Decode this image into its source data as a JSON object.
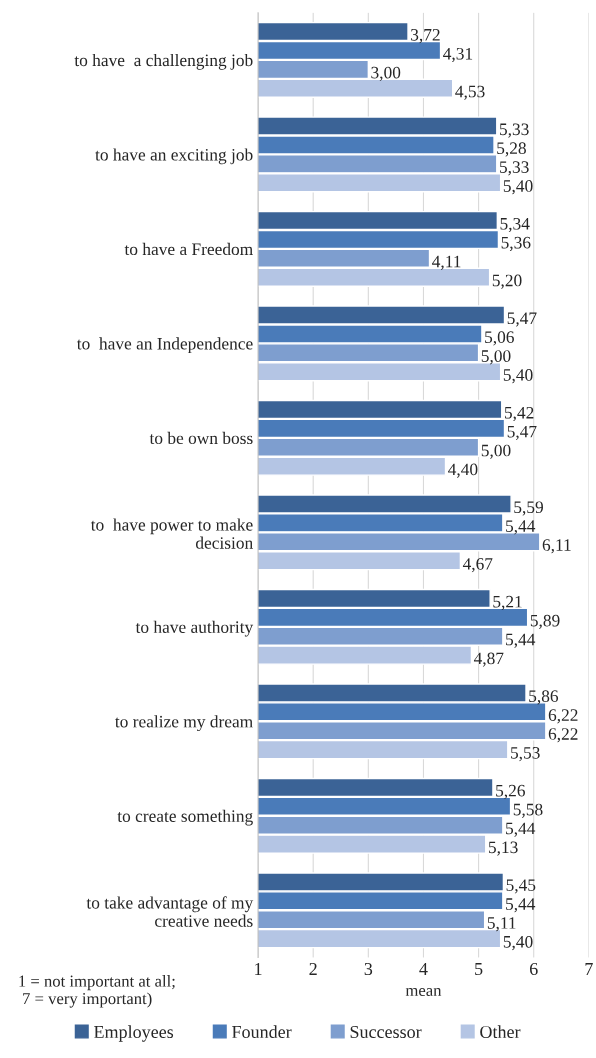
{
  "chart_data": {
    "type": "bar",
    "orientation": "horizontal",
    "xlabel": "mean",
    "categories": [
      "to have  a challenging job",
      "to have an exciting job",
      "to have a Freedom",
      "to  have an Independence",
      "to be own boss",
      "to  have power to make\ndecision",
      "to have authority",
      "to realize my dream",
      "to create something",
      "to take advantage of my\ncreative needs"
    ],
    "series": [
      {
        "name": "Employees",
        "color": "#3b6396",
        "values": [
          3.72,
          5.33,
          5.34,
          5.47,
          5.42,
          5.59,
          5.21,
          5.86,
          5.26,
          5.45
        ],
        "value_labels": [
          "3,72",
          "5,33",
          "5,34",
          "5,47",
          "5,42",
          "5,59",
          "5,21",
          "5,86",
          "5,26",
          "5,45"
        ]
      },
      {
        "name": "Founder",
        "color": "#4a7bb9",
        "values": [
          4.31,
          5.28,
          5.36,
          5.06,
          5.47,
          5.44,
          5.89,
          6.22,
          5.58,
          5.44
        ],
        "value_labels": [
          "4,31",
          "5,28",
          "5,36",
          "5,06",
          "5,47",
          "5,44",
          "5,89",
          "6,22",
          "5,58",
          "5,44"
        ]
      },
      {
        "name": "Successor",
        "color": "#7e9ecf",
        "values": [
          3.0,
          5.33,
          4.11,
          5.0,
          5.0,
          6.11,
          5.44,
          6.22,
          5.44,
          5.11
        ],
        "value_labels": [
          "3,00",
          "5,33",
          "4,11",
          "5,00",
          "5,00",
          "6,11",
          "5,44",
          "6,22",
          "5,44",
          "5,11"
        ]
      },
      {
        "name": "Other",
        "color": "#b4c5e4",
        "values": [
          4.53,
          5.4,
          5.2,
          5.4,
          4.4,
          4.67,
          4.87,
          5.53,
          5.13,
          5.4
        ],
        "value_labels": [
          "4,53",
          "5,40",
          "5,20",
          "5,40",
          "4,40",
          "4,67",
          "4,87",
          "5,53",
          "5,13",
          "5,40"
        ]
      }
    ],
    "xlim": [
      1,
      7
    ],
    "xticks": [
      1,
      2,
      3,
      4,
      5,
      6,
      7
    ],
    "grid": "x",
    "legend": "bottom",
    "annotations": [
      "1 = not important at all;\n 7 = very important)"
    ]
  }
}
